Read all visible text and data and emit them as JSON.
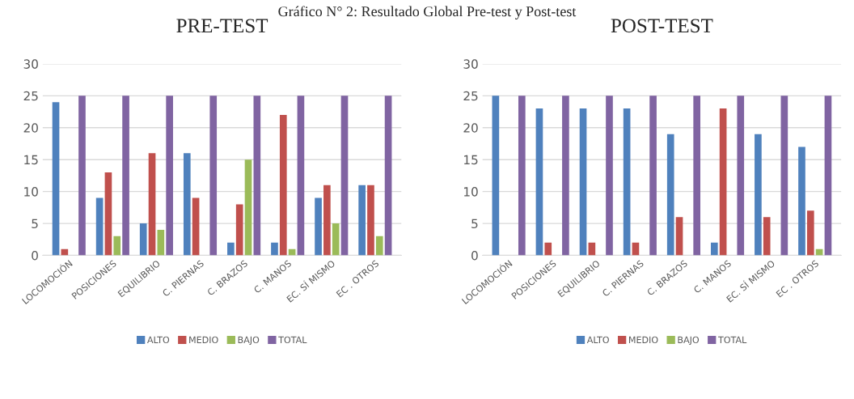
{
  "chart_data": [
    {
      "type": "bar",
      "title": "PRE-TEST",
      "annotations": [
        "Gráfico N° 2: Resultado Global Pre-test y Post-test"
      ],
      "categories": [
        "LOCOMOCIÓN",
        "POSICIONES",
        "EQUILIBRIO",
        "C. PIERNAS",
        "C. BRAZOS",
        "C. MANOS",
        "EC. SÍ MISMO",
        "EC . OTROS"
      ],
      "series": [
        {
          "name": "ALTO",
          "color": "#4f81bd",
          "values": [
            24,
            9,
            5,
            16,
            2,
            2,
            9,
            11
          ]
        },
        {
          "name": "MEDIO",
          "color": "#c0504d",
          "values": [
            1,
            13,
            16,
            9,
            8,
            22,
            11,
            11
          ]
        },
        {
          "name": "BAJO",
          "color": "#9bbb59",
          "values": [
            0,
            3,
            4,
            0,
            15,
            1,
            5,
            3
          ]
        },
        {
          "name": "TOTAL",
          "color": "#8064a2",
          "values": [
            25,
            25,
            25,
            25,
            25,
            25,
            25,
            25
          ]
        }
      ],
      "ylim": [
        0,
        30
      ],
      "yticks": [
        0,
        5,
        10,
        15,
        20,
        25,
        30
      ],
      "grid": "y",
      "legend": "bottom"
    },
    {
      "type": "bar",
      "title": "POST-TEST",
      "categories": [
        "LOCOMOCIÓN",
        "POSICIONES",
        "EQUILIBRIO",
        "C. PIERNAS",
        "C. BRAZOS",
        "C. MANOS",
        "EC. SÍ MISMO",
        "EC . OTROS"
      ],
      "series": [
        {
          "name": "ALTO",
          "color": "#4f81bd",
          "values": [
            25,
            23,
            23,
            23,
            19,
            2,
            19,
            17
          ]
        },
        {
          "name": "MEDIO",
          "color": "#c0504d",
          "values": [
            0,
            2,
            2,
            2,
            6,
            23,
            6,
            7
          ]
        },
        {
          "name": "BAJO",
          "color": "#9bbb59",
          "values": [
            0,
            0,
            0,
            0,
            0,
            0,
            0,
            1
          ]
        },
        {
          "name": "TOTAL",
          "color": "#8064a2",
          "values": [
            25,
            25,
            25,
            25,
            25,
            25,
            25,
            25
          ]
        }
      ],
      "ylim": [
        0,
        30
      ],
      "yticks": [
        0,
        5,
        10,
        15,
        20,
        25,
        30
      ],
      "grid": "y",
      "legend": "bottom"
    }
  ]
}
